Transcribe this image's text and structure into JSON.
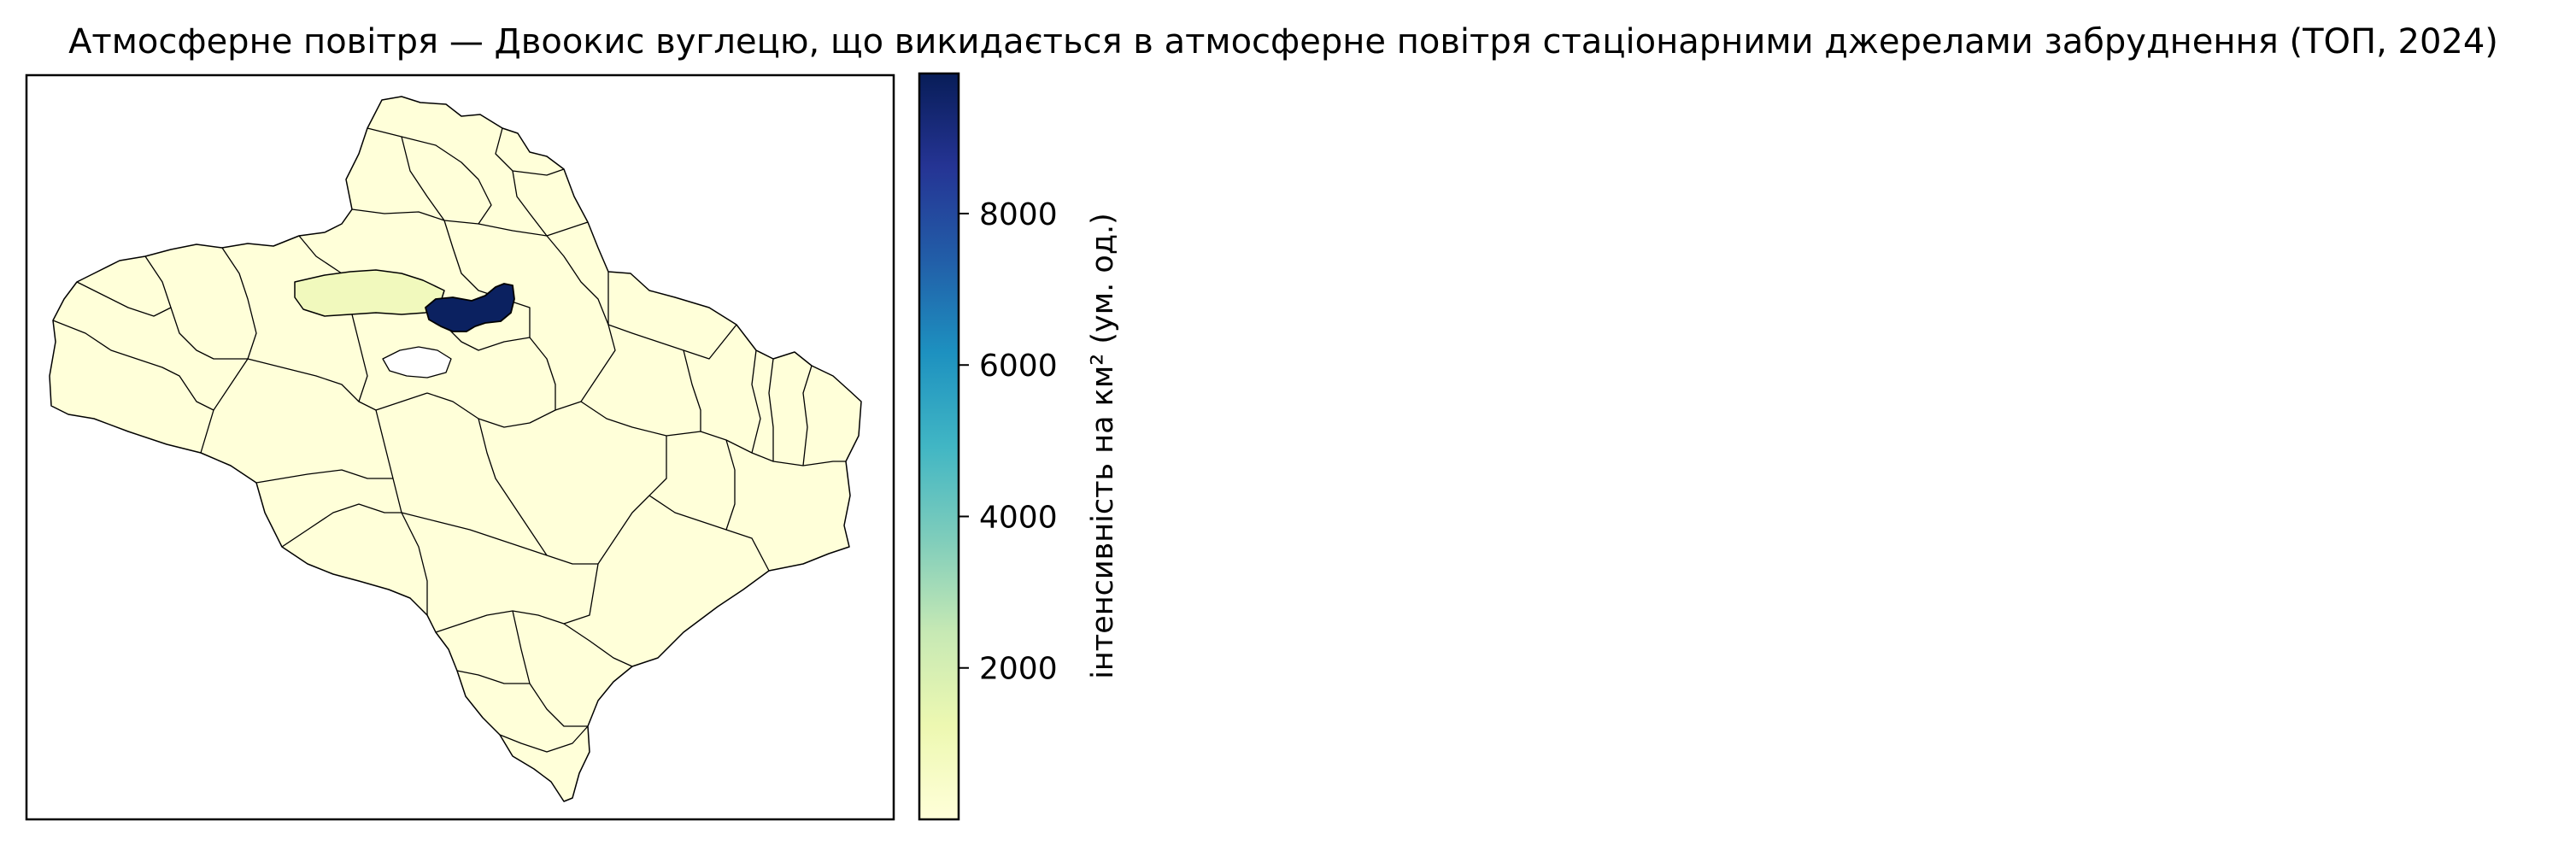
{
  "title": "Атмосферне повітря — Двоокис вуглецю, що викидається в атмосферне повітря стаціонарними джерелами забруднення (ТОП, 2024)",
  "colorbar": {
    "label": "інтенсивність на км² (ум. од.)",
    "colormap": "YlGnBu",
    "min": 0,
    "max": 9850,
    "ticks": [
      {
        "value": 2000,
        "label": "2000"
      },
      {
        "value": 4000,
        "label": "4000"
      },
      {
        "value": 6000,
        "label": "6000"
      },
      {
        "value": 8000,
        "label": "8000"
      }
    ],
    "stops": [
      "#ffffd9",
      "#edf8b1",
      "#c7e9b4",
      "#7fcdbb",
      "#41b6c4",
      "#1d91c0",
      "#225ea8",
      "#253494",
      "#081d58"
    ]
  },
  "map": {
    "region_colors": {
      "default": "#ffffd9",
      "highest": "#0b2160",
      "second": "#f1f9bd",
      "missing": "#ffffff",
      "border": "#000000"
    }
  }
}
